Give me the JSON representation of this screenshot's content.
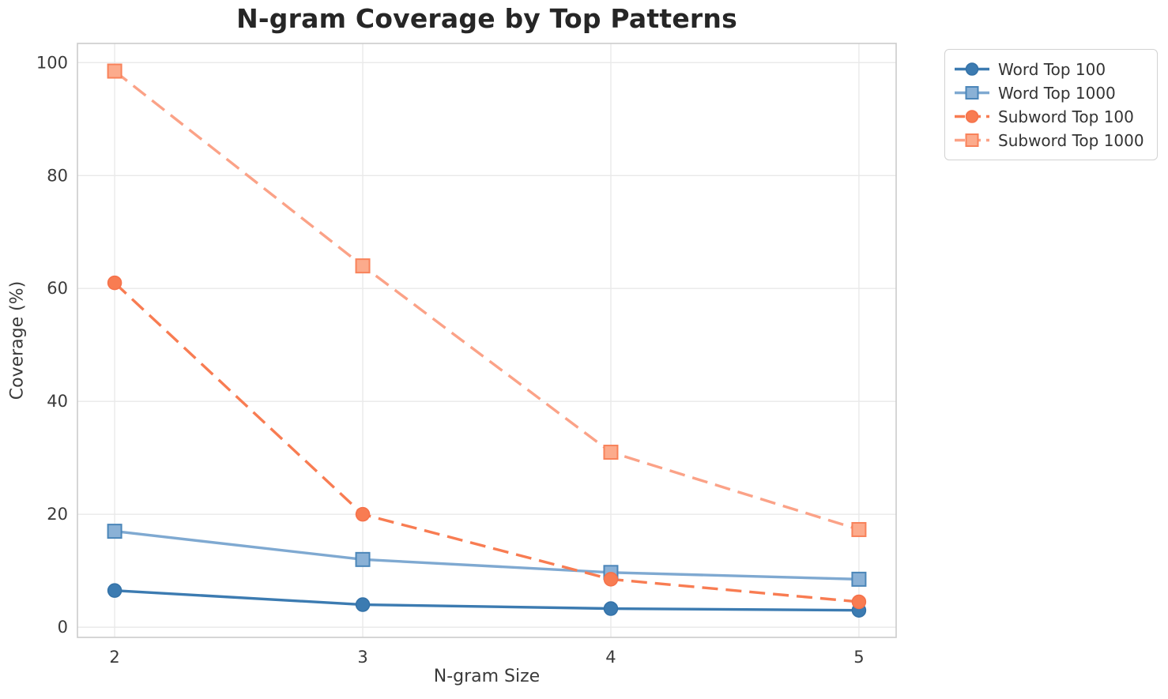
{
  "chart_data": {
    "type": "line",
    "title": "N-gram Coverage by Top Patterns",
    "xlabel": "N-gram Size",
    "ylabel": "Coverage (%)",
    "x": [
      2,
      3,
      4,
      5
    ],
    "x_tick_labels": [
      "2",
      "3",
      "4",
      "5"
    ],
    "y_ticks": [
      0,
      20,
      40,
      60,
      80,
      100
    ],
    "y_tick_labels": [
      "0",
      "20",
      "40",
      "60",
      "80",
      "100"
    ],
    "xlim": [
      1.85,
      5.15
    ],
    "ylim": [
      -1.8,
      103.4
    ],
    "grid": true,
    "legend_position": "outside upper right",
    "series": [
      {
        "name": "Word Top 100",
        "values": [
          6.5,
          4.0,
          3.3,
          3.0
        ],
        "color": "#3c7bb1",
        "marker": "circle",
        "marker_fill": "#3c7bb1",
        "marker_edge": "#3472a8",
        "line_style": "solid"
      },
      {
        "name": "Word Top 1000",
        "values": [
          17.0,
          12.0,
          9.7,
          8.5
        ],
        "color": "#7fa9d1",
        "marker": "square",
        "marker_fill": "#8ab1d6",
        "marker_edge": "#4b86b9",
        "line_style": "solid"
      },
      {
        "name": "Subword Top 100",
        "values": [
          61.0,
          20.0,
          8.5,
          4.5
        ],
        "color": "#f87c52",
        "marker": "circle",
        "marker_fill": "#f87c52",
        "marker_edge": "#f5714a",
        "line_style": "dashed"
      },
      {
        "name": "Subword Top 1000",
        "values": [
          98.5,
          64.0,
          31.0,
          17.3
        ],
        "color": "#fba287",
        "marker": "square",
        "marker_fill": "#fcab8c",
        "marker_edge": "#f8825a",
        "line_style": "dashed"
      }
    ],
    "style": {
      "background": "#ffffff",
      "grid_color": "#e9e9e9",
      "spine_color": "#cccccc",
      "tick_label_color": "#3a3a3a",
      "title_color": "#262626"
    }
  }
}
